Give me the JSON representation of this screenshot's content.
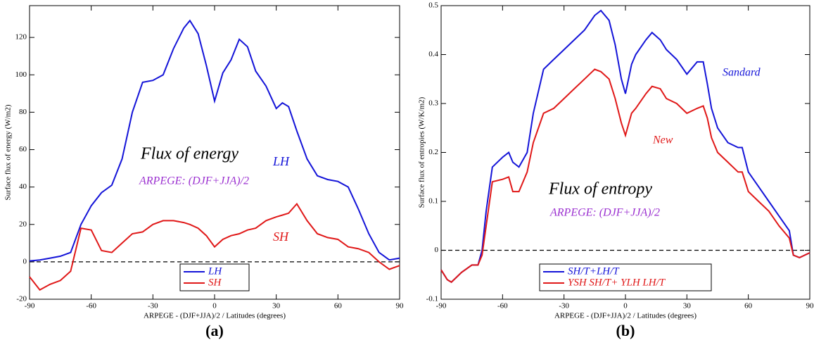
{
  "chart_data": [
    {
      "type": "line",
      "label": "(a)",
      "y_label": "Surface flux of energy (W/m2)",
      "x_label": "ARPEGE - (DJF+JJA)/2 / Latitudes (degrees)",
      "xlim": [
        -90,
        90
      ],
      "xticks": [
        -90,
        -60,
        -30,
        0,
        30,
        60,
        90
      ],
      "ylim": [
        -20,
        137
      ],
      "yticks": [
        -20,
        0,
        20,
        40,
        60,
        80,
        100,
        120
      ],
      "zero_line": true,
      "legend": "lower center",
      "annotations": [
        {
          "text": "Flux of energy",
          "color": "#000000"
        },
        {
          "text": "ARPEGE: (DJF+JJA)/2",
          "color": "#9b30d0"
        },
        {
          "text": "LH",
          "color": "#1414d8"
        },
        {
          "text": "SH",
          "color": "#e01818"
        }
      ],
      "x": [
        -90,
        -85,
        -80,
        -75,
        -70,
        -65,
        -60,
        -55,
        -50,
        -45,
        -40,
        -35,
        -30,
        -25,
        -20,
        -15,
        -12,
        -8,
        -4,
        0,
        4,
        8,
        12,
        16,
        20,
        25,
        30,
        33,
        36,
        40,
        45,
        50,
        55,
        60,
        65,
        70,
        75,
        80,
        85,
        90
      ],
      "series": [
        {
          "name": "LH",
          "color": "#1414d8",
          "values": [
            0.5,
            1,
            2,
            3,
            5,
            20,
            30,
            37,
            41,
            55,
            80,
            96,
            97,
            100,
            114,
            125,
            129,
            122,
            105,
            86,
            101,
            108,
            119,
            115,
            102,
            94,
            82,
            85,
            83,
            70,
            55,
            46,
            44,
            43,
            40,
            28,
            15,
            5,
            1,
            2
          ]
        },
        {
          "name": "SH",
          "color": "#e01818",
          "values": [
            -8,
            -15,
            -12,
            -10,
            -5,
            18,
            17,
            6,
            5,
            10,
            15,
            16,
            20,
            22,
            22,
            21,
            20,
            18,
            14,
            8,
            12,
            14,
            15,
            17,
            18,
            22,
            24,
            25,
            26,
            31,
            22,
            15,
            13,
            12,
            8,
            7,
            5,
            0,
            -4,
            -2
          ]
        }
      ]
    },
    {
      "type": "line",
      "label": "(b)",
      "y_label": "Surface flux of entropies (W/K/m2)",
      "x_label": "ARPEGE - (DJF+JJA)/2 / Latitudes (degrees)",
      "xlim": [
        -90,
        90
      ],
      "xticks": [
        -90,
        -60,
        -30,
        0,
        30,
        60,
        90
      ],
      "ylim": [
        -0.1,
        0.5
      ],
      "yticks": [
        -0.1,
        0,
        0.1,
        0.2,
        0.3,
        0.4,
        0.5
      ],
      "zero_line": true,
      "legend": "lower center",
      "annotations": [
        {
          "text": "Sandard",
          "color": "#1414d8"
        },
        {
          "text": "New",
          "color": "#e01818"
        },
        {
          "text": "Flux of entropy",
          "color": "#000000"
        },
        {
          "text": "ARPEGE: (DJF+JJA)/2",
          "color": "#9b30d0"
        }
      ],
      "x": [
        -90,
        -87,
        -85,
        -80,
        -75,
        -72,
        -70,
        -68,
        -65,
        -60,
        -57,
        -55,
        -52,
        -48,
        -45,
        -40,
        -35,
        -30,
        -25,
        -20,
        -15,
        -12,
        -8,
        -5,
        -2,
        0,
        3,
        5,
        10,
        13,
        17,
        20,
        25,
        30,
        35,
        38,
        40,
        42,
        45,
        50,
        55,
        57,
        60,
        65,
        70,
        75,
        80,
        82,
        85,
        90
      ],
      "series": [
        {
          "name": "SH/T+LH/T",
          "color": "#1414d8",
          "values": [
            -0.04,
            -0.06,
            -0.065,
            -0.045,
            -0.03,
            -0.03,
            0.0,
            0.08,
            0.17,
            0.19,
            0.2,
            0.18,
            0.17,
            0.2,
            0.28,
            0.37,
            0.39,
            0.41,
            0.43,
            0.45,
            0.48,
            0.49,
            0.47,
            0.42,
            0.35,
            0.32,
            0.38,
            0.4,
            0.43,
            0.445,
            0.43,
            0.41,
            0.39,
            0.36,
            0.385,
            0.385,
            0.34,
            0.29,
            0.25,
            0.22,
            0.21,
            0.21,
            0.16,
            0.13,
            0.1,
            0.07,
            0.04,
            -0.01,
            -0.015,
            -0.005
          ]
        },
        {
          "name": "YSH SH/T+ YLH LH/T",
          "color": "#e01818",
          "values": [
            -0.04,
            -0.06,
            -0.065,
            -0.045,
            -0.03,
            -0.03,
            -0.01,
            0.05,
            0.14,
            0.145,
            0.15,
            0.12,
            0.12,
            0.16,
            0.22,
            0.28,
            0.29,
            0.31,
            0.33,
            0.35,
            0.37,
            0.365,
            0.35,
            0.31,
            0.26,
            0.235,
            0.28,
            0.29,
            0.32,
            0.335,
            0.33,
            0.31,
            0.3,
            0.28,
            0.29,
            0.295,
            0.27,
            0.23,
            0.2,
            0.18,
            0.16,
            0.16,
            0.12,
            0.1,
            0.08,
            0.05,
            0.025,
            -0.01,
            -0.015,
            -0.005
          ]
        }
      ]
    }
  ]
}
